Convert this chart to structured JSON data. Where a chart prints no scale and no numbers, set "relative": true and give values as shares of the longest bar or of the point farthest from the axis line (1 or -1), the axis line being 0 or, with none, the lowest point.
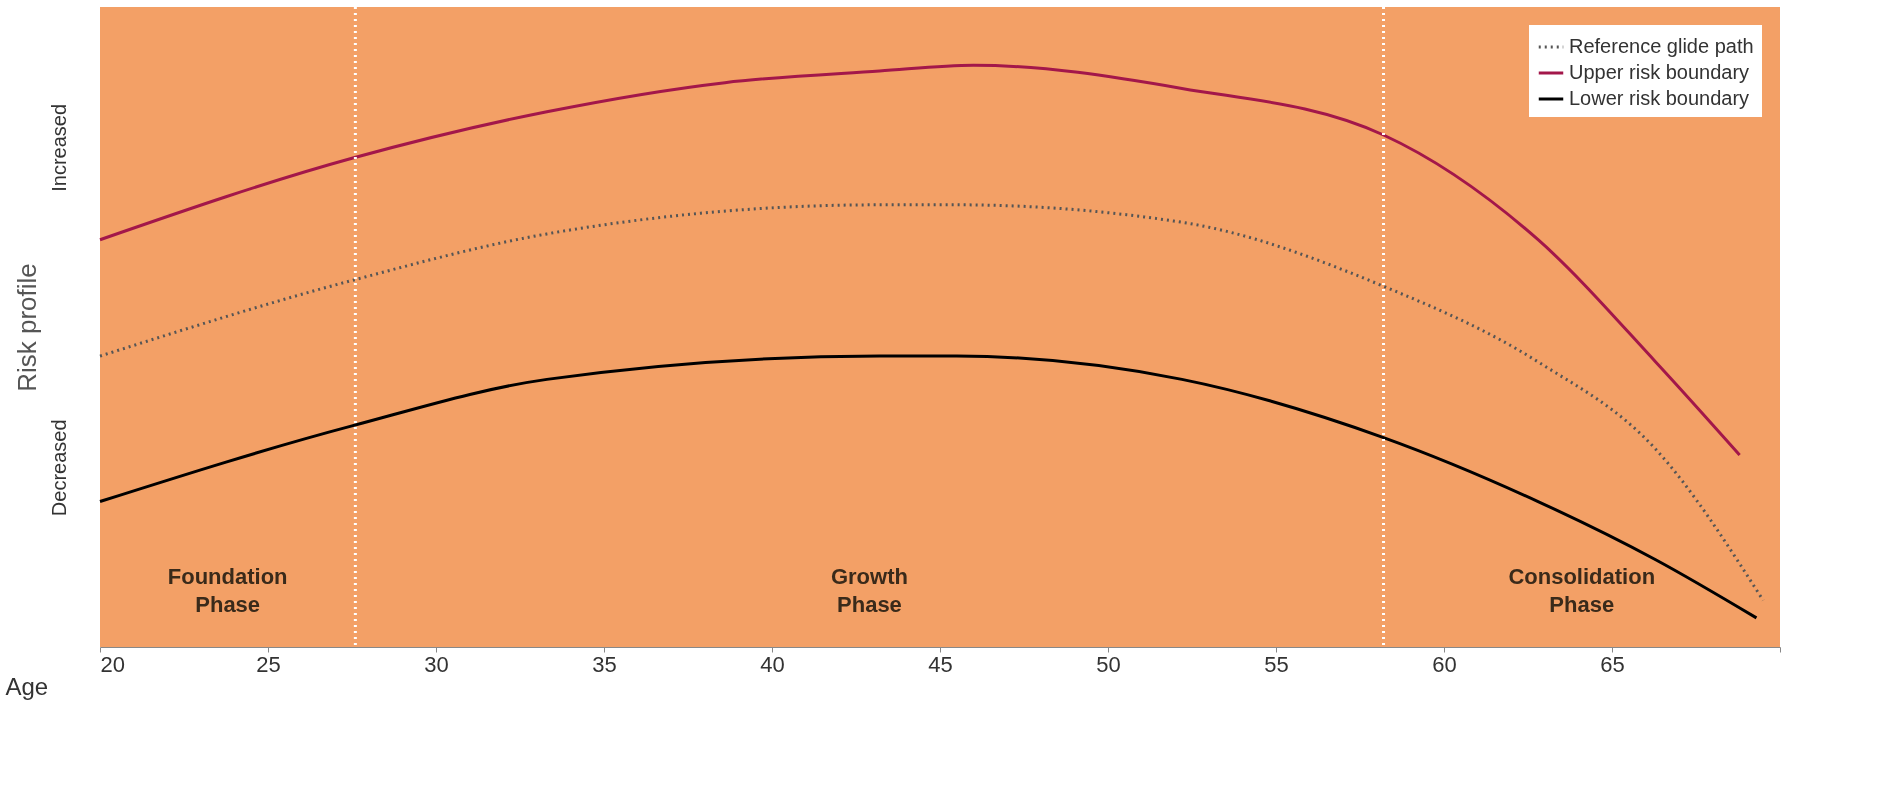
{
  "chart_data": {
    "type": "line",
    "relative": true,
    "xlabel": "Age",
    "ylabel": "Risk profile",
    "xlim": [
      20,
      70
    ],
    "xticks": [
      20,
      25,
      30,
      35,
      40,
      45,
      50,
      55,
      60,
      65,
      {
        "value": 70,
        "label": null
      }
    ],
    "series": [
      {
        "name": "Reference glide path",
        "color": "#555555",
        "line_style": "dotted",
        "x": [
          20.0,
          27.5,
          33.3,
          43.2,
          45.5,
          52.2,
          58.2,
          62.8,
          66.3,
          69.5
        ],
        "values": [
          0.5,
          0.63,
          0.71,
          0.76,
          0.76,
          0.73,
          0.62,
          0.49,
          0.34,
          0.08
        ]
      },
      {
        "name": "Upper risk boundary",
        "color": "#a3174a",
        "line_style": "solid",
        "x": [
          20.0,
          27.5,
          33.3,
          38.6,
          43.2,
          46.0,
          52.2,
          58.2,
          62.8,
          66.3,
          68.8
        ],
        "values": [
          0.7,
          0.84,
          0.92,
          0.97,
          0.99,
          1.0,
          0.96,
          0.88,
          0.7,
          0.49,
          0.33
        ]
      },
      {
        "name": "Lower risk boundary",
        "color": "#000000",
        "line_style": "solid",
        "x": [
          20.0,
          27.5,
          33.3,
          43.2,
          45.5,
          52.2,
          58.2,
          62.8,
          66.3,
          69.3
        ],
        "values": [
          0.25,
          0.38,
          0.46,
          0.5,
          0.5,
          0.46,
          0.36,
          0.25,
          0.15,
          0.05
        ]
      }
    ],
    "ref_lines": [
      {
        "axis": "x",
        "value": 27.6,
        "color": "#ffffff",
        "line_style": "dotted"
      },
      {
        "axis": "x",
        "value": 58.2,
        "color": "#ffffff",
        "line_style": "dotted"
      }
    ],
    "annotations": [
      "Foundation\nPhase",
      "Growth\nPhase",
      "Consolidation\nPhase",
      "Increased",
      "Decreased"
    ],
    "legend": "top right",
    "grid": false
  }
}
